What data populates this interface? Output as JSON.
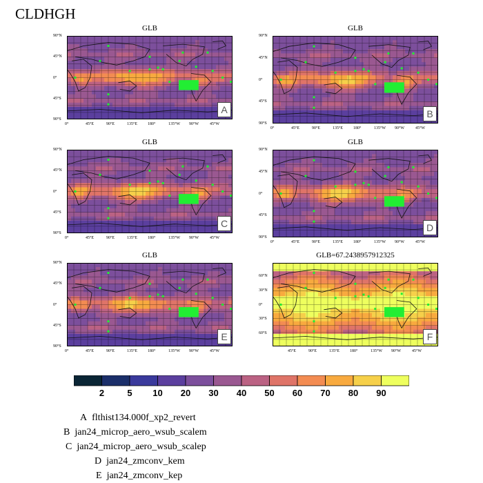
{
  "title": "CLDHGH",
  "colors": {
    "scale": [
      "#0a2535",
      "#1b2f6a",
      "#3a3a9c",
      "#5b3f9e",
      "#7c4f9c",
      "#9a5891",
      "#bb6283",
      "#df7468",
      "#f38c52",
      "#f8aa3f",
      "#f6d04a",
      "#eeff5e"
    ],
    "marker": "#22ee33"
  },
  "chart_data": [
    {
      "type": "heatmap",
      "label": "A",
      "title": "GLB",
      "region": "tropics",
      "lat_ticks": [
        "90°N",
        "45°N",
        "0°",
        "45°S",
        "90°S"
      ],
      "lon_ticks": [
        "0°",
        "45°E",
        "90°E",
        "135°E",
        "180°",
        "135°W",
        "90°W",
        "45°W"
      ]
    },
    {
      "type": "heatmap",
      "label": "B",
      "title": "GLB",
      "region": "tropics",
      "lat_ticks": [
        "90°N",
        "45°N",
        "0°",
        "45°S",
        "90°S"
      ],
      "lon_ticks": [
        "0°",
        "45°E",
        "90°E",
        "135°E",
        "180°",
        "135°W",
        "90°W",
        "45°W"
      ]
    },
    {
      "type": "heatmap",
      "label": "C",
      "title": "GLB",
      "region": "tropics",
      "lat_ticks": [
        "90°N",
        "45°N",
        "0°",
        "45°S",
        "90°S"
      ],
      "lon_ticks": [
        "0°",
        "45°E",
        "90°E",
        "135°E",
        "180°",
        "135°W",
        "90°W",
        "45°W"
      ]
    },
    {
      "type": "heatmap",
      "label": "D",
      "title": "GLB",
      "region": "tropics",
      "lat_ticks": [
        "90°N",
        "45°N",
        "0°",
        "45°S",
        "90°S"
      ],
      "lon_ticks": [
        "0°",
        "45°E",
        "90°E",
        "135°E",
        "180°",
        "135°W",
        "90°W",
        "45°W"
      ]
    },
    {
      "type": "heatmap",
      "label": "E",
      "title": "GLB",
      "region": "tropics",
      "lat_ticks": [
        "90°N",
        "45°N",
        "0°",
        "45°S",
        "90°S"
      ],
      "lon_ticks": [
        "0°",
        "45°E",
        "90°E",
        "135°E",
        "180°",
        "135°W",
        "90°W",
        "45°W"
      ]
    },
    {
      "type": "heatmap",
      "label": "F",
      "title": "GLB=67.2438957912325",
      "region": "global",
      "lat_ticks": [
        "60°N",
        "30°N",
        "0°",
        "30°S",
        "60°S"
      ],
      "lon_ticks": [
        "45°E",
        "90°E",
        "135°E",
        "180°",
        "135°W",
        "90°W",
        "45°W"
      ]
    }
  ],
  "colorbar": {
    "labels": [
      "2",
      "5",
      "10",
      "20",
      "30",
      "40",
      "50",
      "60",
      "70",
      "80",
      "90"
    ]
  },
  "legend": [
    {
      "letter": "A",
      "name": "flthist134.000f_xp2_revert"
    },
    {
      "letter": "B",
      "name": "jan24_microp_aero_wsub_scalem"
    },
    {
      "letter": "C",
      "name": "jan24_microp_aero_wsub_scalep"
    },
    {
      "letter": "D",
      "name": "jan24_zmconv_kem"
    },
    {
      "letter": "E",
      "name": "jan24_zmconv_kep"
    }
  ]
}
